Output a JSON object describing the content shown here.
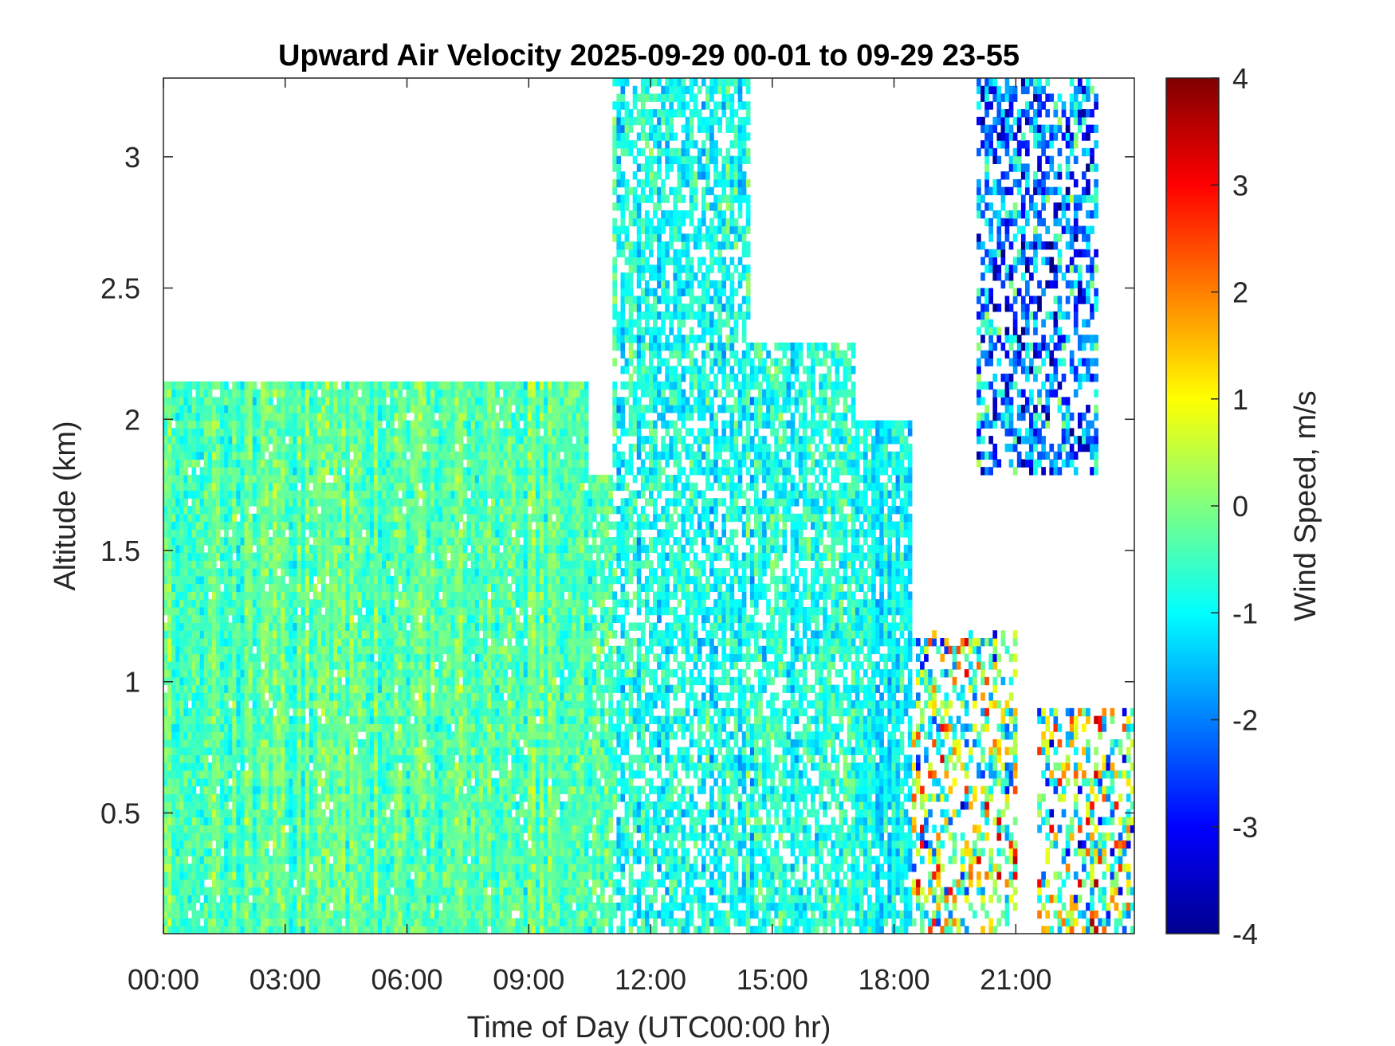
{
  "chart_data": {
    "type": "heatmap",
    "title": "Upward Air Velocity 2025-09-29 00-01 to 09-29 23-55",
    "xlabel": "Time of Day (UTC00:00 hr)",
    "ylabel": "Altitude (km)",
    "colorbar_label": "Wind Speed, m/s",
    "colormap": "jet",
    "xlim": [
      0,
      23.92
    ],
    "ylim": [
      0.04,
      3.3
    ],
    "clim": [
      -4,
      4
    ],
    "x_ticks": [
      0,
      3,
      6,
      9,
      12,
      15,
      18,
      21
    ],
    "x_tick_labels": [
      "00:00",
      "03:00",
      "06:00",
      "09:00",
      "12:00",
      "15:00",
      "18:00",
      "21:00"
    ],
    "y_ticks": [
      0.5,
      1,
      1.5,
      2,
      2.5,
      3
    ],
    "y_tick_labels": [
      "0.5",
      "1",
      "1.5",
      "2",
      "2.5",
      "3"
    ],
    "colorbar_ticks": [
      -4,
      -3,
      -2,
      -1,
      0,
      1,
      2,
      3,
      4
    ],
    "colorbar_tick_labels": [
      "-4",
      "-3",
      "-2",
      "-1",
      "0",
      "1",
      "2",
      "3",
      "4"
    ],
    "regions": [
      {
        "t0": 0,
        "t1": 10.5,
        "alt_top": 2.15,
        "mean": -0.3,
        "spread": 0.8,
        "coverage": 0.97
      },
      {
        "t0": 10.5,
        "t1": 11.1,
        "alt_top": 1.8,
        "mean": -0.5,
        "spread": 0.9,
        "coverage": 0.85
      },
      {
        "t0": 11.1,
        "t1": 14.5,
        "alt_top": 3.3,
        "mean": -0.8,
        "spread": 1.0,
        "coverage": 0.7
      },
      {
        "t0": 14.5,
        "t1": 17.0,
        "alt_top": 2.3,
        "mean": -0.8,
        "spread": 1.0,
        "coverage": 0.75
      },
      {
        "t0": 17.0,
        "t1": 18.4,
        "alt_top": 2.0,
        "mean": -1.0,
        "spread": 0.8,
        "coverage": 0.85
      },
      {
        "t0": 18.4,
        "t1": 21.0,
        "alt_top": 1.2,
        "mean": 0.0,
        "spread": 3.5,
        "coverage": 0.45
      },
      {
        "t0": 20.0,
        "t1": 23.0,
        "alt_top": 3.3,
        "alt_bottom": 1.8,
        "mean": -2.0,
        "spread": 2.5,
        "coverage": 0.5
      },
      {
        "t0": 21.5,
        "t1": 23.92,
        "alt_top": 0.9,
        "mean": 0.0,
        "spread": 3.8,
        "coverage": 0.45
      }
    ]
  }
}
